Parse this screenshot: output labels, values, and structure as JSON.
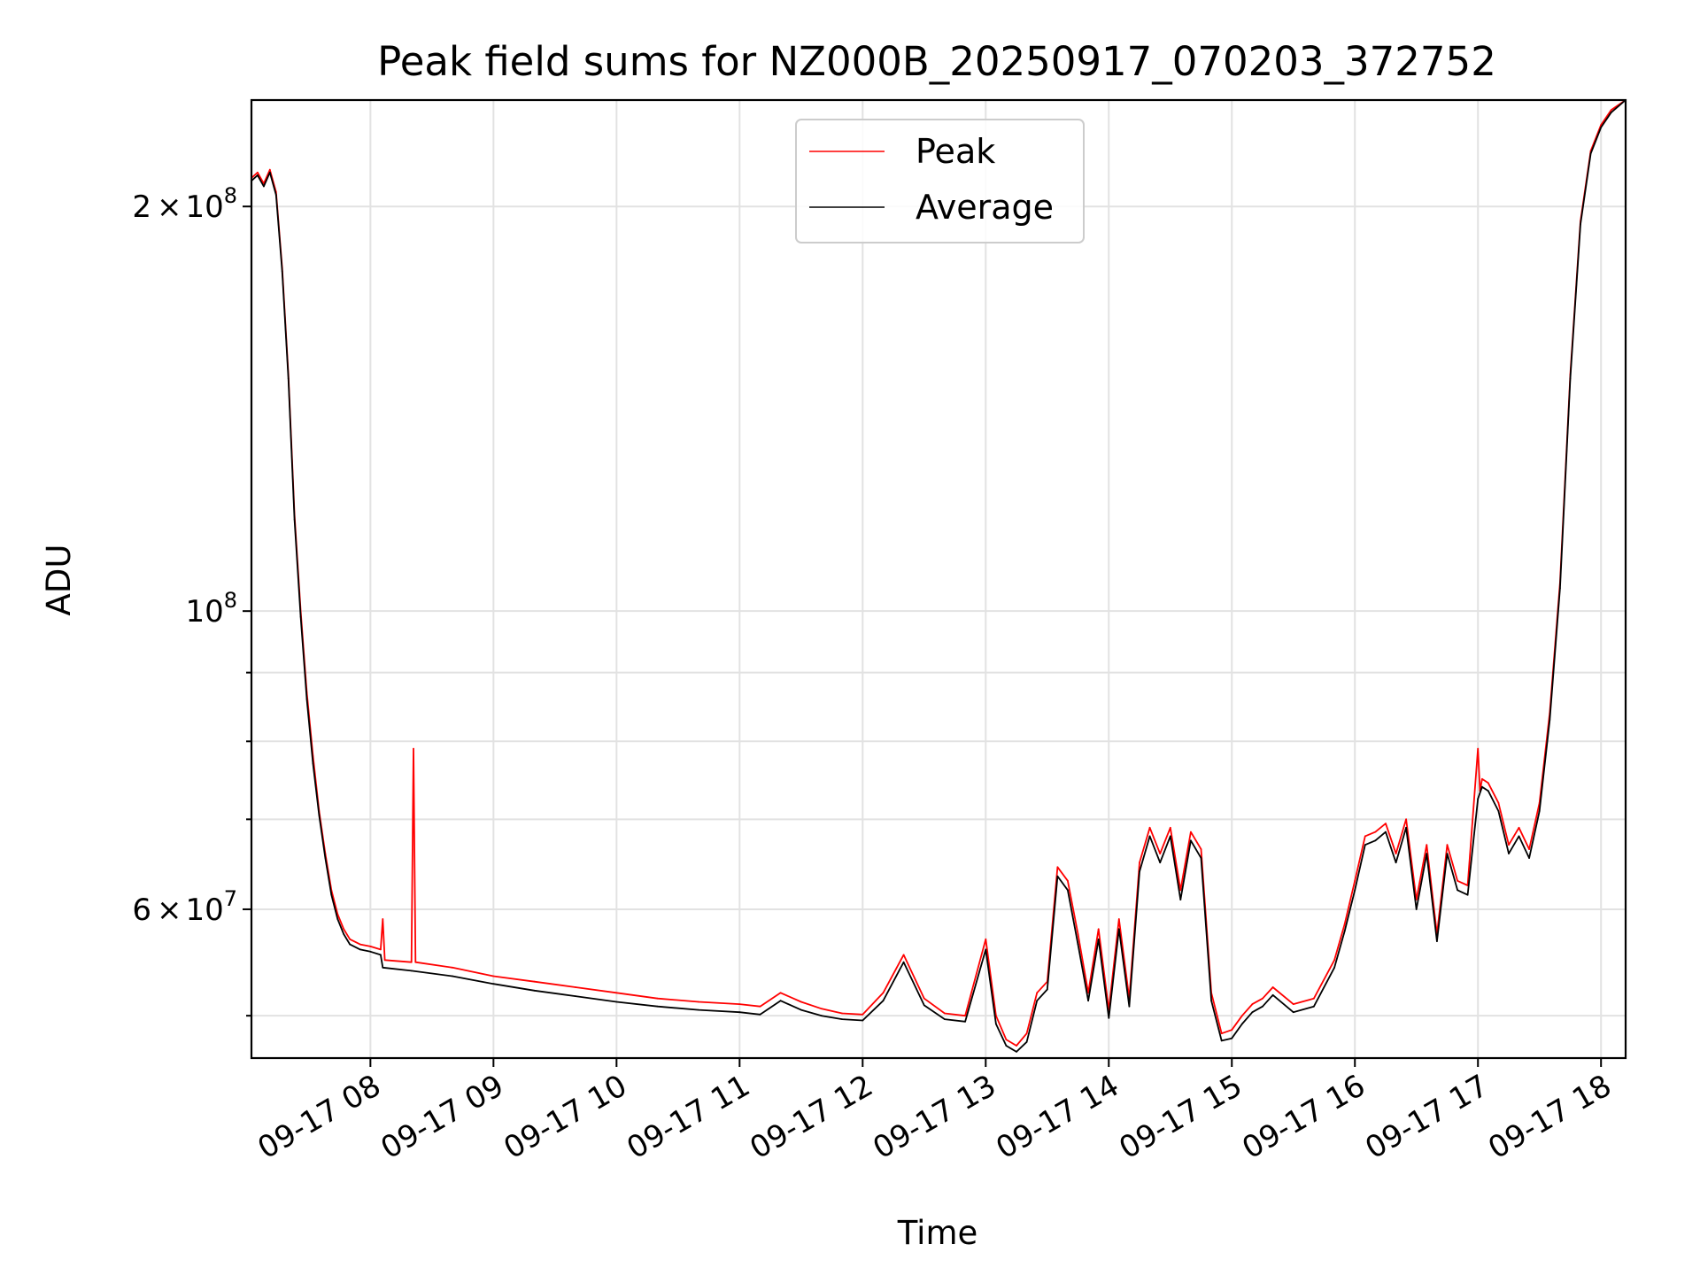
{
  "chart_data": {
    "type": "line",
    "title": "Peak field sums for NZ000B_20250917_070203_372752",
    "xlabel": "Time",
    "ylabel": "ADU",
    "x_ticks": [
      "09-17 08",
      "09-17 09",
      "09-17 10",
      "09-17 11",
      "09-17 12",
      "09-17 13",
      "09-17 14",
      "09-17 15",
      "09-17 16",
      "09-17 17",
      "09-17 18"
    ],
    "y_scale": "log",
    "y_ticks_major": [
      {
        "value": 200000000,
        "mantissa": "2",
        "base": "10",
        "exp": "8"
      },
      {
        "value": 100000000,
        "mantissa": "",
        "base": "10",
        "exp": "8"
      },
      {
        "value": 60000000,
        "mantissa": "6",
        "base": "10",
        "exp": "7"
      }
    ],
    "y_ticks_minor": [
      50000000,
      70000000,
      80000000,
      90000000
    ],
    "xlim": [
      "2025-09-17 07:02",
      "2025-09-17 18:12"
    ],
    "ylim": [
      46500000,
      240000000
    ],
    "grid": true,
    "legend_position": "upper-center",
    "series": [
      {
        "name": "Peak",
        "color": "#ff0000",
        "x": [
          "07:02",
          "07:05",
          "07:08",
          "07:11",
          "07:14",
          "07:17",
          "07:20",
          "07:23",
          "07:26",
          "07:29",
          "07:32",
          "07:35",
          "07:38",
          "07:41",
          "07:44",
          "07:47",
          "07:50",
          "07:55",
          "08:00",
          "08:05",
          "08:06",
          "08:07",
          "08:20",
          "08:21",
          "08:22",
          "08:40",
          "09:00",
          "09:20",
          "09:40",
          "10:00",
          "10:20",
          "10:40",
          "11:00",
          "11:10",
          "11:20",
          "11:30",
          "11:40",
          "11:50",
          "12:00",
          "12:10",
          "12:20",
          "12:30",
          "12:40",
          "12:50",
          "13:00",
          "13:05",
          "13:10",
          "13:15",
          "13:20",
          "13:25",
          "13:30",
          "13:35",
          "13:40",
          "13:45",
          "13:50",
          "13:55",
          "14:00",
          "14:05",
          "14:10",
          "14:15",
          "14:20",
          "14:25",
          "14:30",
          "14:35",
          "14:40",
          "14:45",
          "14:50",
          "14:55",
          "15:00",
          "15:05",
          "15:10",
          "15:15",
          "15:20",
          "15:30",
          "15:40",
          "15:50",
          "15:55",
          "16:00",
          "16:05",
          "16:10",
          "16:15",
          "16:20",
          "16:25",
          "16:30",
          "16:35",
          "16:40",
          "16:45",
          "16:50",
          "16:55",
          "17:00",
          "17:01",
          "17:02",
          "17:05",
          "17:10",
          "17:15",
          "17:20",
          "17:25",
          "17:30",
          "17:35",
          "17:40",
          "17:45",
          "17:50",
          "17:55",
          "18:00",
          "18:05",
          "18:12"
        ],
        "values": [
          210000000,
          212000000,
          208000000,
          213000000,
          205000000,
          180000000,
          150000000,
          118000000,
          100000000,
          87000000,
          78000000,
          71000000,
          66000000,
          62000000,
          59500000,
          58000000,
          57000000,
          56500000,
          56300000,
          56000000,
          59000000,
          55000000,
          54800000,
          79000000,
          54800000,
          54300000,
          53500000,
          53000000,
          52500000,
          52000000,
          51500000,
          51200000,
          51000000,
          50800000,
          52000000,
          51200000,
          50600000,
          50200000,
          50100000,
          52000000,
          55500000,
          51500000,
          50200000,
          50000000,
          57000000,
          50000000,
          48000000,
          47500000,
          48500000,
          52000000,
          53000000,
          64500000,
          63000000,
          57500000,
          52000000,
          58000000,
          50500000,
          59000000,
          51500000,
          65000000,
          69000000,
          66000000,
          69000000,
          62000000,
          68500000,
          66500000,
          52000000,
          48500000,
          48800000,
          50000000,
          51000000,
          51500000,
          52500000,
          51000000,
          51500000,
          55000000,
          58500000,
          63000000,
          68000000,
          68500000,
          69500000,
          66000000,
          70000000,
          61000000,
          67000000,
          57500000,
          67000000,
          63000000,
          62500000,
          79000000,
          73500000,
          75000000,
          74500000,
          72000000,
          67000000,
          69000000,
          66500000,
          72000000,
          84000000,
          105000000,
          150000000,
          195000000,
          220000000,
          230000000,
          236000000,
          240000000
        ]
      },
      {
        "name": "Average",
        "color": "#000000",
        "x": [
          "07:02",
          "07:05",
          "07:08",
          "07:11",
          "07:14",
          "07:17",
          "07:20",
          "07:23",
          "07:26",
          "07:29",
          "07:32",
          "07:35",
          "07:38",
          "07:41",
          "07:44",
          "07:47",
          "07:50",
          "07:55",
          "08:00",
          "08:05",
          "08:06",
          "08:20",
          "08:40",
          "09:00",
          "09:20",
          "09:40",
          "10:00",
          "10:20",
          "10:40",
          "11:00",
          "11:10",
          "11:20",
          "11:30",
          "11:40",
          "11:50",
          "12:00",
          "12:10",
          "12:20",
          "12:30",
          "12:40",
          "12:50",
          "13:00",
          "13:05",
          "13:10",
          "13:15",
          "13:20",
          "13:25",
          "13:30",
          "13:35",
          "13:40",
          "13:45",
          "13:50",
          "13:55",
          "14:00",
          "14:05",
          "14:10",
          "14:15",
          "14:20",
          "14:25",
          "14:30",
          "14:35",
          "14:40",
          "14:45",
          "14:50",
          "14:55",
          "15:00",
          "15:05",
          "15:10",
          "15:15",
          "15:20",
          "15:30",
          "15:40",
          "15:50",
          "15:55",
          "16:00",
          "16:05",
          "16:10",
          "16:15",
          "16:20",
          "16:25",
          "16:30",
          "16:35",
          "16:40",
          "16:45",
          "16:50",
          "16:55",
          "17:00",
          "17:02",
          "17:05",
          "17:10",
          "17:15",
          "17:20",
          "17:25",
          "17:30",
          "17:35",
          "17:40",
          "17:45",
          "17:50",
          "17:55",
          "18:00",
          "18:05",
          "18:12"
        ],
        "values": [
          209000000,
          211000000,
          207000000,
          212000000,
          204000000,
          179000000,
          149000000,
          117000000,
          99000000,
          86000000,
          77000000,
          70500000,
          65500000,
          61500000,
          59000000,
          57500000,
          56500000,
          56000000,
          55800000,
          55500000,
          54300000,
          54000000,
          53500000,
          52800000,
          52200000,
          51700000,
          51200000,
          50800000,
          50500000,
          50300000,
          50100000,
          51300000,
          50500000,
          50000000,
          49700000,
          49600000,
          51300000,
          54800000,
          50900000,
          49700000,
          49500000,
          56000000,
          49300000,
          47500000,
          47000000,
          47800000,
          51300000,
          52300000,
          63500000,
          62000000,
          56500000,
          51300000,
          57000000,
          49800000,
          58000000,
          50800000,
          64000000,
          68000000,
          65000000,
          68000000,
          61000000,
          67500000,
          65500000,
          51300000,
          47900000,
          48100000,
          49300000,
          50300000,
          50800000,
          51800000,
          50300000,
          50800000,
          54300000,
          57800000,
          62000000,
          67000000,
          67500000,
          68500000,
          65000000,
          69000000,
          60000000,
          66000000,
          56800000,
          66000000,
          62000000,
          61500000,
          72500000,
          74000000,
          73500000,
          71000000,
          66000000,
          68000000,
          65500000,
          71000000,
          83000000,
          104000000,
          149000000,
          194000000,
          219000000,
          229000000,
          235000000,
          240000000
        ]
      }
    ]
  }
}
